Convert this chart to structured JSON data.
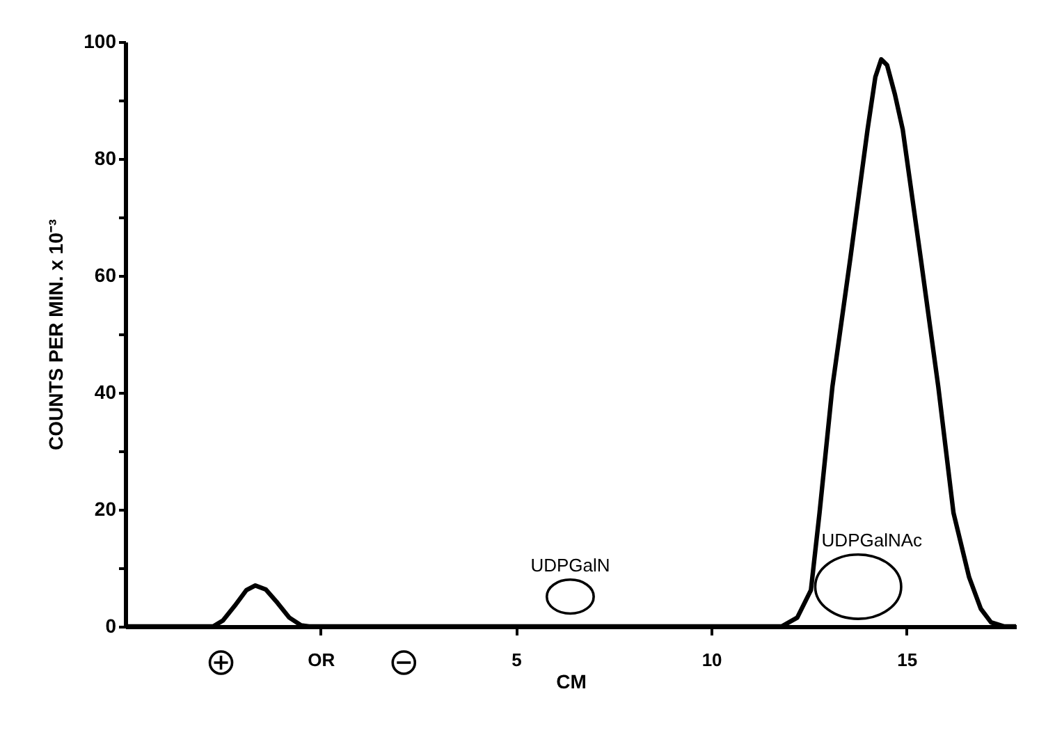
{
  "chart_data": {
    "type": "line",
    "xlabel": "CM",
    "ylabel": "COUNTS PER MIN. x 10⁻³",
    "xlim": [
      -5,
      17.8
    ],
    "ylim": [
      0,
      100
    ],
    "xticks": [
      {
        "value": 0,
        "label": "OR"
      },
      5,
      10,
      15
    ],
    "yticks": [
      0,
      {
        "value": 10,
        "label": null
      },
      20,
      {
        "value": 30,
        "label": null
      },
      40,
      {
        "value": 50,
        "label": null
      },
      60,
      {
        "value": 70,
        "label": null
      },
      80,
      {
        "value": 90,
        "label": null
      },
      100
    ],
    "grid": false,
    "marker": "none",
    "line_style": "solid",
    "annotations": [
      "UDPGalN",
      "UDPGalNAc"
    ],
    "series": [
      {
        "color": "#000000",
        "x": [
          -5,
          -2.75,
          -2.5,
          -2.2,
          -1.9,
          -1.67,
          -1.4,
          -1.1,
          -0.8,
          -0.5,
          -0.3,
          11.8,
          12.2,
          12.55,
          12.77,
          13.1,
          13.56,
          14.0,
          14.2,
          14.35,
          14.5,
          14.7,
          14.9,
          15.36,
          15.81,
          16.2,
          16.6,
          16.9,
          17.16,
          17.5,
          17.8
        ],
        "values": [
          0,
          0,
          1.0,
          3.5,
          6.2,
          7.0,
          6.3,
          4.0,
          1.5,
          0.2,
          0,
          0,
          1.5,
          6.2,
          19.4,
          41,
          63,
          85,
          94,
          97,
          96,
          91,
          85,
          63,
          41,
          19.4,
          8.4,
          3,
          0.7,
          0,
          0
        ]
      }
    ]
  }
}
